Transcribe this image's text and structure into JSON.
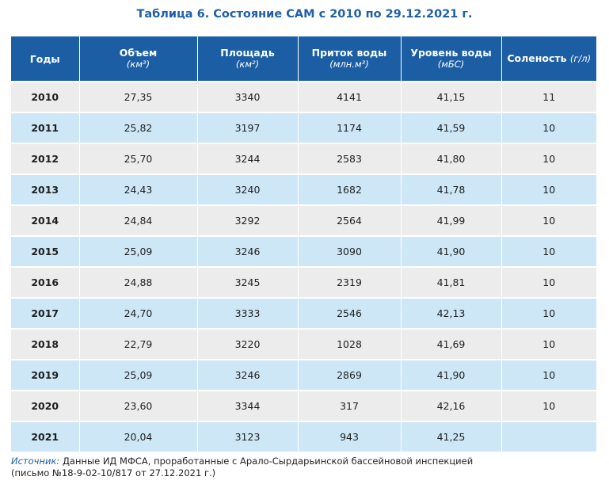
{
  "title": "Таблица 6. Состояние САМ с 2010 по 29.12.2021 г.",
  "columns": [
    {
      "label": "Годы",
      "unit": ""
    },
    {
      "label": "Объем",
      "unit": "(км³)"
    },
    {
      "label": "Площадь",
      "unit": "(км²)"
    },
    {
      "label": "Приток воды",
      "unit": "(млн.м³)"
    },
    {
      "label": "Уровень воды",
      "unit": "(мБС)"
    },
    {
      "label": "Соленость",
      "unit": "(г/л)"
    }
  ],
  "rows": [
    [
      "2010",
      "27,35",
      "3340",
      "4141",
      "41,15",
      "11"
    ],
    [
      "2011",
      "25,82",
      "3197",
      "1174",
      "41,59",
      "10"
    ],
    [
      "2012",
      "25,70",
      "3244",
      "2583",
      "41,80",
      "10"
    ],
    [
      "2013",
      "24,43",
      "3240",
      "1682",
      "41,78",
      "10"
    ],
    [
      "2014",
      "24,84",
      "3292",
      "2564",
      "41,99",
      "10"
    ],
    [
      "2015",
      "25,09",
      "3246",
      "3090",
      "41,90",
      "10"
    ],
    [
      "2016",
      "24,88",
      "3245",
      "2319",
      "41,81",
      "10"
    ],
    [
      "2017",
      "24,70",
      "3333",
      "2546",
      "42,13",
      "10"
    ],
    [
      "2018",
      "22,79",
      "3220",
      "1028",
      "41,69",
      "10"
    ],
    [
      "2019",
      "25,09",
      "3246",
      "2869",
      "41,90",
      "10"
    ],
    [
      "2020",
      "23,60",
      "3344",
      "317",
      "42,16",
      "10"
    ],
    [
      "2021",
      "20,04",
      "3123",
      "943",
      "41,25",
      ""
    ]
  ],
  "source": {
    "lead": "Источник:",
    "line1": "Данные ИД МФСА, проработанные с Арало-Сырдарьинской бассейновой инспекцией",
    "line2": "(письмо №18-9-02-10/817 от 27.12.2021 г.)"
  },
  "colors": {
    "header_bg": "#1b5ea4",
    "title": "#1f5fa8",
    "row_gray": "#ececec",
    "row_blue": "#cde7f7"
  }
}
